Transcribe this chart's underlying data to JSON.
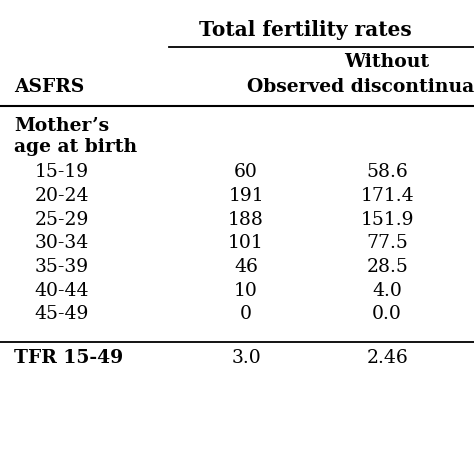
{
  "title": "Total fertility rates",
  "col1_header": "ASFRS",
  "col3_header_line1": "Without",
  "col3_header_line2": "Observed discontinuations",
  "group_label_line1": "Mother’s",
  "group_label_line2": "age at birth",
  "rows": [
    [
      "15-19",
      "60",
      "58.6"
    ],
    [
      "20-24",
      "191",
      "171.4"
    ],
    [
      "25-29",
      "188",
      "151.9"
    ],
    [
      "30-34",
      "101",
      "77.5"
    ],
    [
      "35-39",
      "46",
      "28.5"
    ],
    [
      "40-44",
      "10",
      "4.0"
    ],
    [
      "45-49",
      "0",
      "0.0"
    ]
  ],
  "footer_label": "TFR 15-49",
  "footer_col2": "3.0",
  "footer_col3": "2.46",
  "bg_color": "#ffffff",
  "text_color": "#000000",
  "font_size": 13.5,
  "title_font_size": 14.5
}
